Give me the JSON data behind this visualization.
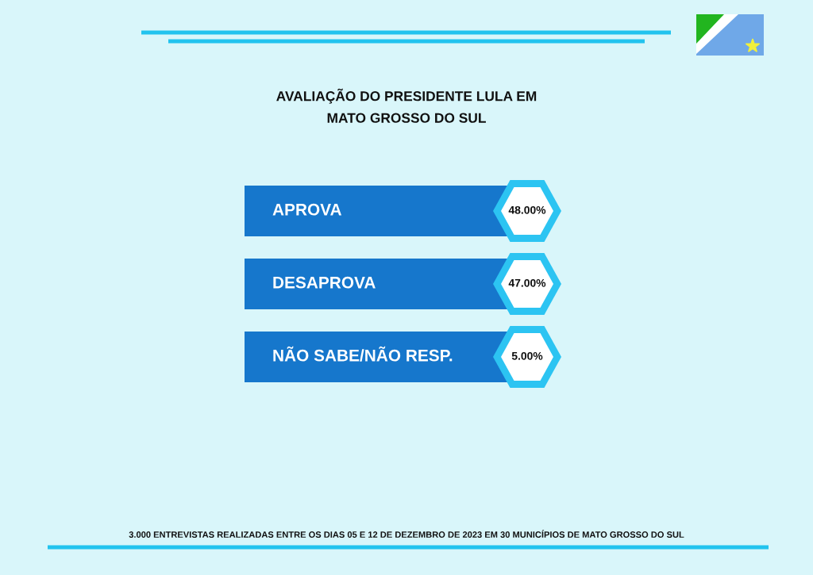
{
  "chart_data": {
    "type": "other",
    "title": "AVALIAÇÃO DO PRESIDENTE LULA EM\nMATO GROSSO DO SUL",
    "categories": [
      "APROVA",
      "DESAPROVA",
      "NÃO SABE/NÃO RESP."
    ],
    "values": [
      48,
      47,
      5
    ],
    "value_labels": [
      "48.00%",
      "47.00%",
      "5.00%"
    ],
    "annotations": [
      "3.000 ENTREVISTAS REALIZADAS ENTRE OS DIAS 05 E 12 DE DEZEMBRO DE 2023 EM 30 MUNICÍPIOS DE MATO GROSSO DO SUL"
    ]
  }
}
